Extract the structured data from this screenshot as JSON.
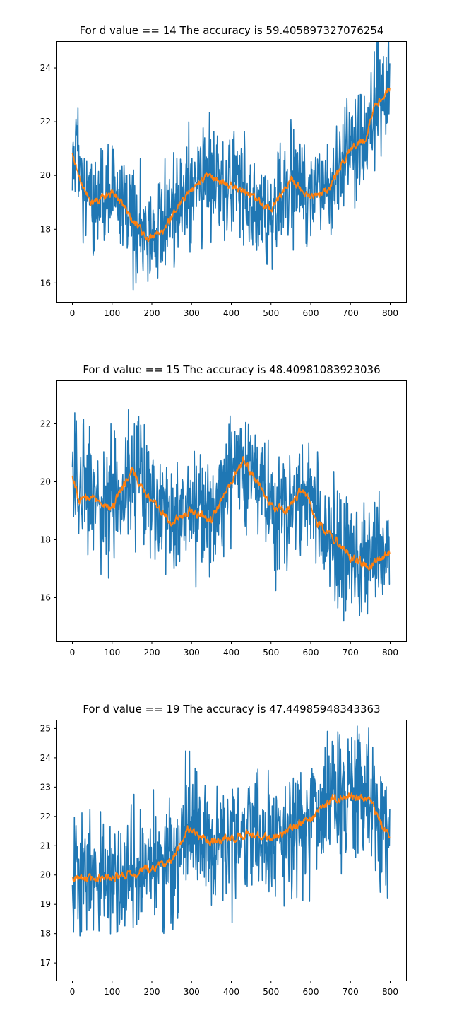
{
  "chart_data": [
    {
      "type": "line",
      "title": "For d value == 14  The accuracy is 59.405897327076254",
      "xlim": [
        -40,
        840
      ],
      "ylim": [
        15.3,
        25.0
      ],
      "xticks": [
        0,
        100,
        200,
        300,
        400,
        500,
        600,
        700,
        800
      ],
      "yticks": [
        16,
        18,
        20,
        22,
        24
      ],
      "x_count": 800,
      "series": [
        {
          "color": "#1f77b4",
          "style": "noisy",
          "noise_amplitude": 1.0,
          "trend_x": [
            0,
            20,
            50,
            100,
            130,
            160,
            190,
            230,
            260,
            300,
            340,
            400,
            450,
            500,
            550,
            600,
            650,
            700,
            740,
            760,
            800
          ],
          "trend_y": [
            20.8,
            19.8,
            18.9,
            19.4,
            18.8,
            18.2,
            17.6,
            18.0,
            18.7,
            19.5,
            20.0,
            19.6,
            19.3,
            18.7,
            19.9,
            19.2,
            19.6,
            21.0,
            21.4,
            22.6,
            23.2
          ]
        },
        {
          "color": "#ff7f0e",
          "style": "smooth",
          "noise_amplitude": 0.25,
          "trend_x": [
            0,
            20,
            50,
            100,
            130,
            160,
            190,
            230,
            260,
            300,
            340,
            400,
            450,
            500,
            550,
            600,
            650,
            700,
            740,
            760,
            800
          ],
          "trend_y": [
            20.8,
            19.8,
            18.9,
            19.4,
            18.8,
            18.2,
            17.6,
            18.0,
            18.7,
            19.5,
            20.0,
            19.6,
            19.3,
            18.7,
            19.9,
            19.2,
            19.6,
            21.0,
            21.4,
            22.6,
            23.2
          ]
        }
      ]
    },
    {
      "type": "line",
      "title": "For d value == 15  The accuracy is 48.40981083923036",
      "xlim": [
        -40,
        840
      ],
      "ylim": [
        14.5,
        23.5
      ],
      "xticks": [
        0,
        100,
        200,
        300,
        400,
        500,
        600,
        700,
        800
      ],
      "yticks": [
        16,
        18,
        20,
        22
      ],
      "x_count": 800,
      "series": [
        {
          "color": "#1f77b4",
          "style": "noisy",
          "noise_amplitude": 1.05,
          "trend_x": [
            0,
            15,
            50,
            100,
            150,
            200,
            250,
            300,
            350,
            430,
            500,
            540,
            580,
            620,
            660,
            700,
            750,
            800
          ],
          "trend_y": [
            20.3,
            19.4,
            19.5,
            19.1,
            20.4,
            19.3,
            18.6,
            19.0,
            18.7,
            20.8,
            19.2,
            19.0,
            19.8,
            18.5,
            18.0,
            17.4,
            17.1,
            17.6
          ]
        },
        {
          "color": "#ff7f0e",
          "style": "smooth",
          "noise_amplitude": 0.25,
          "trend_x": [
            0,
            15,
            50,
            100,
            150,
            200,
            250,
            300,
            350,
            430,
            500,
            540,
            580,
            620,
            660,
            700,
            750,
            800
          ],
          "trend_y": [
            20.3,
            19.4,
            19.5,
            19.1,
            20.4,
            19.3,
            18.6,
            19.0,
            18.7,
            20.8,
            19.2,
            19.0,
            19.8,
            18.5,
            18.0,
            17.4,
            17.1,
            17.6
          ]
        }
      ]
    },
    {
      "type": "line",
      "title": "For d value == 19  The accuracy is 47.44985948343363",
      "xlim": [
        -40,
        840
      ],
      "ylim": [
        16.4,
        25.3
      ],
      "xticks": [
        0,
        100,
        200,
        300,
        400,
        500,
        600,
        700,
        800
      ],
      "yticks": [
        17,
        18,
        19,
        20,
        21,
        22,
        23,
        24,
        25
      ],
      "x_count": 800,
      "series": [
        {
          "color": "#1f77b4",
          "style": "noisy",
          "noise_amplitude": 1.05,
          "trend_x": [
            0,
            50,
            150,
            250,
            290,
            350,
            450,
            500,
            550,
            600,
            650,
            700,
            750,
            780,
            800
          ],
          "trend_y": [
            19.9,
            19.9,
            20.0,
            20.5,
            21.6,
            21.1,
            21.4,
            21.2,
            21.6,
            21.9,
            22.6,
            22.7,
            22.6,
            21.6,
            21.3
          ]
        },
        {
          "color": "#ff7f0e",
          "style": "smooth",
          "noise_amplitude": 0.25,
          "trend_x": [
            0,
            50,
            150,
            250,
            290,
            350,
            450,
            500,
            550,
            600,
            650,
            700,
            750,
            780,
            800
          ],
          "trend_y": [
            19.9,
            19.9,
            20.0,
            20.5,
            21.6,
            21.1,
            21.4,
            21.2,
            21.6,
            21.9,
            22.6,
            22.7,
            22.6,
            21.6,
            21.3
          ]
        }
      ]
    }
  ]
}
